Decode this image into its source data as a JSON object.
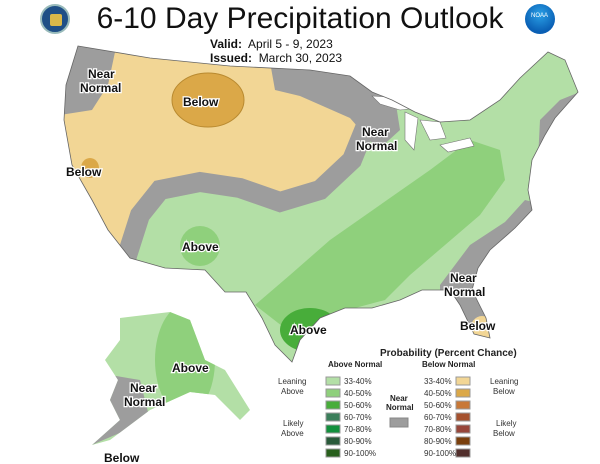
{
  "header": {
    "title": "6-10 Day Precipitation Outlook",
    "valid_label": "Valid:",
    "valid_value": "April 5 - 9, 2023",
    "issued_label": "Issued:",
    "issued_value": "March 30, 2023",
    "left_logo": "doc-seal-icon",
    "right_logo": "noaa-logo-icon",
    "right_logo_text": "NOAA"
  },
  "map_labels": {
    "nw": [
      "Near",
      "Normal"
    ],
    "north_rockies": "Below",
    "california": "Below",
    "great_lakes": [
      "Near",
      "Normal"
    ],
    "southwest": "Above",
    "texas": "Above",
    "southeast": [
      "Near",
      "Normal"
    ],
    "florida": "Below",
    "alaska_main": "Above",
    "alaska_sw": [
      "Near",
      "Normal"
    ],
    "alaska_south": "Below"
  },
  "legend": {
    "title": "Probability (Percent Chance)",
    "above_header": "Above Normal",
    "below_header": "Below Normal",
    "near_label": [
      "Near",
      "Normal"
    ],
    "leaning_above": [
      "Leaning",
      "Above"
    ],
    "likely_above": [
      "Likely",
      "Above"
    ],
    "leaning_below": [
      "Leaning",
      "Below"
    ],
    "likely_below": [
      "Likely",
      "Below"
    ],
    "above": [
      {
        "range": "33-40%",
        "color": "#b3dfa6"
      },
      {
        "range": "40-50%",
        "color": "#8fd07c"
      },
      {
        "range": "50-60%",
        "color": "#48ad3a"
      },
      {
        "range": "60-70%",
        "color": "#3b7e5a"
      },
      {
        "range": "70-80%",
        "color": "#12903c"
      },
      {
        "range": "80-90%",
        "color": "#2a5a3a"
      },
      {
        "range": "90-100%",
        "color": "#285f1c"
      }
    ],
    "below": [
      {
        "range": "33-40%",
        "color": "#f2d695"
      },
      {
        "range": "40-50%",
        "color": "#dba848"
      },
      {
        "range": "50-60%",
        "color": "#c87837"
      },
      {
        "range": "60-70%",
        "color": "#a5512e"
      },
      {
        "range": "70-80%",
        "color": "#97463a"
      },
      {
        "range": "80-90%",
        "color": "#7a3f0c"
      },
      {
        "range": "90-100%",
        "color": "#522f2c"
      }
    ],
    "near_color": "#9d9d9d"
  }
}
